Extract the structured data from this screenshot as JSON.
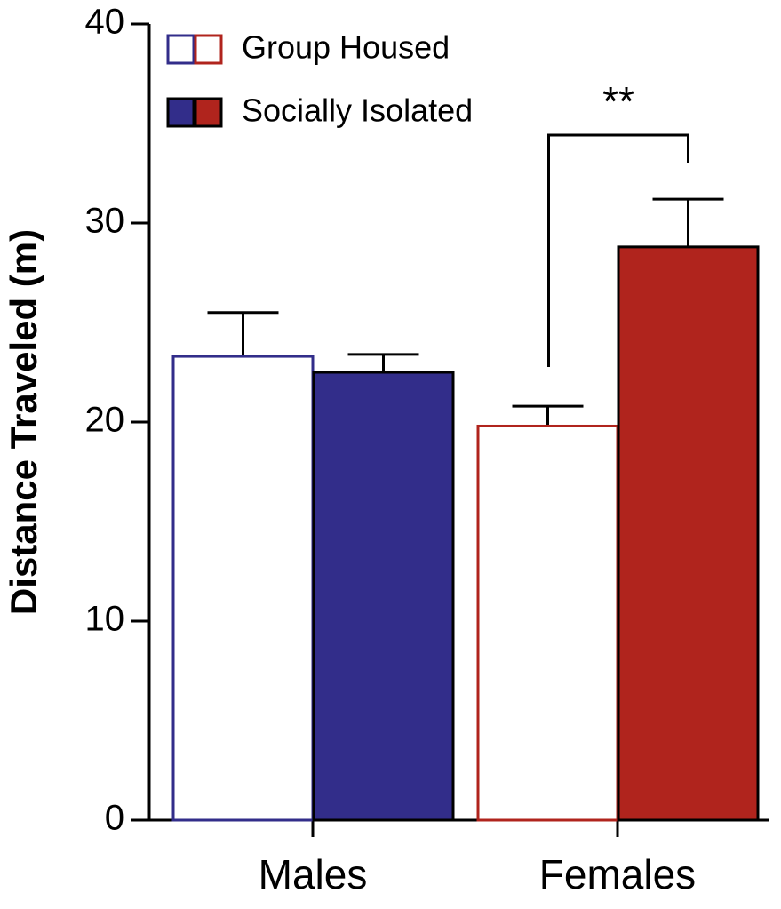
{
  "chart_data": {
    "type": "bar",
    "y_label": "Distance Traveled (m)",
    "categories": [
      "Males",
      "Females"
    ],
    "series": [
      {
        "name": "Group Housed",
        "colors": [
          "#322d8a",
          "#b0241d"
        ],
        "filled": false,
        "values": [
          23.3,
          19.8
        ],
        "errors": [
          2.2,
          1.0
        ]
      },
      {
        "name": "Socially Isolated",
        "colors": [
          "#322d8a",
          "#b0241d"
        ],
        "filled": true,
        "values": [
          22.5,
          28.8
        ],
        "errors": [
          0.9,
          2.4
        ]
      }
    ],
    "annotation": "**",
    "ylim": [
      0,
      40
    ],
    "yticks": [
      0,
      10,
      20,
      30,
      40
    ],
    "grid": false
  }
}
